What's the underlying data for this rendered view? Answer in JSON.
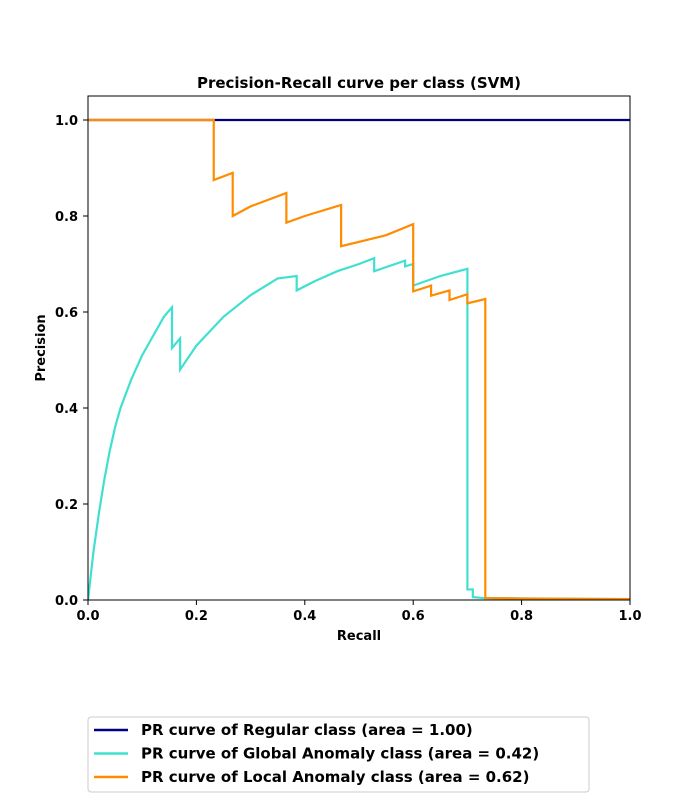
{
  "chart_data": {
    "type": "line",
    "title": "Precision-Recall curve per class (SVM)",
    "xlabel": "Recall",
    "ylabel": "Precision",
    "xlim": [
      0.0,
      1.0
    ],
    "ylim": [
      0.0,
      1.05
    ],
    "xticks": [
      "0.0",
      "0.2",
      "0.4",
      "0.6",
      "0.8",
      "1.0"
    ],
    "yticks": [
      "0.0",
      "0.2",
      "0.4",
      "0.6",
      "0.8",
      "1.0"
    ],
    "grid": false,
    "legend_position": "bottom, below plot",
    "series": [
      {
        "name": "PR curve of Regular class (area = 1.00)",
        "color": "#000080",
        "x": [
          0.0,
          1.0
        ],
        "y": [
          1.0,
          1.0
        ]
      },
      {
        "name": "PR curve of Global Anomaly class (area = 0.42)",
        "color": "#40e0d0",
        "x": [
          0.0,
          0.01,
          0.02,
          0.03,
          0.04,
          0.05,
          0.06,
          0.08,
          0.1,
          0.12,
          0.14,
          0.155,
          0.155,
          0.17,
          0.17,
          0.2,
          0.25,
          0.3,
          0.35,
          0.385,
          0.385,
          0.42,
          0.46,
          0.5,
          0.528,
          0.528,
          0.585,
          0.585,
          0.6,
          0.6,
          0.65,
          0.7,
          0.7,
          0.71,
          0.71,
          0.73,
          0.85,
          1.0
        ],
        "y": [
          0.0,
          0.1,
          0.18,
          0.25,
          0.31,
          0.36,
          0.4,
          0.46,
          0.51,
          0.55,
          0.59,
          0.61,
          0.525,
          0.545,
          0.48,
          0.53,
          0.59,
          0.635,
          0.67,
          0.675,
          0.645,
          0.665,
          0.685,
          0.7,
          0.712,
          0.685,
          0.707,
          0.695,
          0.7,
          0.655,
          0.675,
          0.69,
          0.022,
          0.022,
          0.006,
          0.004,
          0.003,
          0.002
        ]
      },
      {
        "name": "PR curve of Local Anomaly class (area = 0.62)",
        "color": "#ff8c00",
        "x": [
          0.0,
          0.232,
          0.232,
          0.267,
          0.267,
          0.3,
          0.366,
          0.366,
          0.4,
          0.467,
          0.467,
          0.55,
          0.6,
          0.6,
          0.633,
          0.633,
          0.667,
          0.667,
          0.7,
          0.7,
          0.733,
          0.733,
          0.8,
          1.0
        ],
        "y": [
          1.0,
          1.0,
          0.875,
          0.89,
          0.8,
          0.82,
          0.848,
          0.786,
          0.8,
          0.823,
          0.737,
          0.76,
          0.783,
          0.643,
          0.655,
          0.634,
          0.645,
          0.625,
          0.637,
          0.618,
          0.627,
          0.004,
          0.003,
          0.002
        ]
      }
    ]
  }
}
